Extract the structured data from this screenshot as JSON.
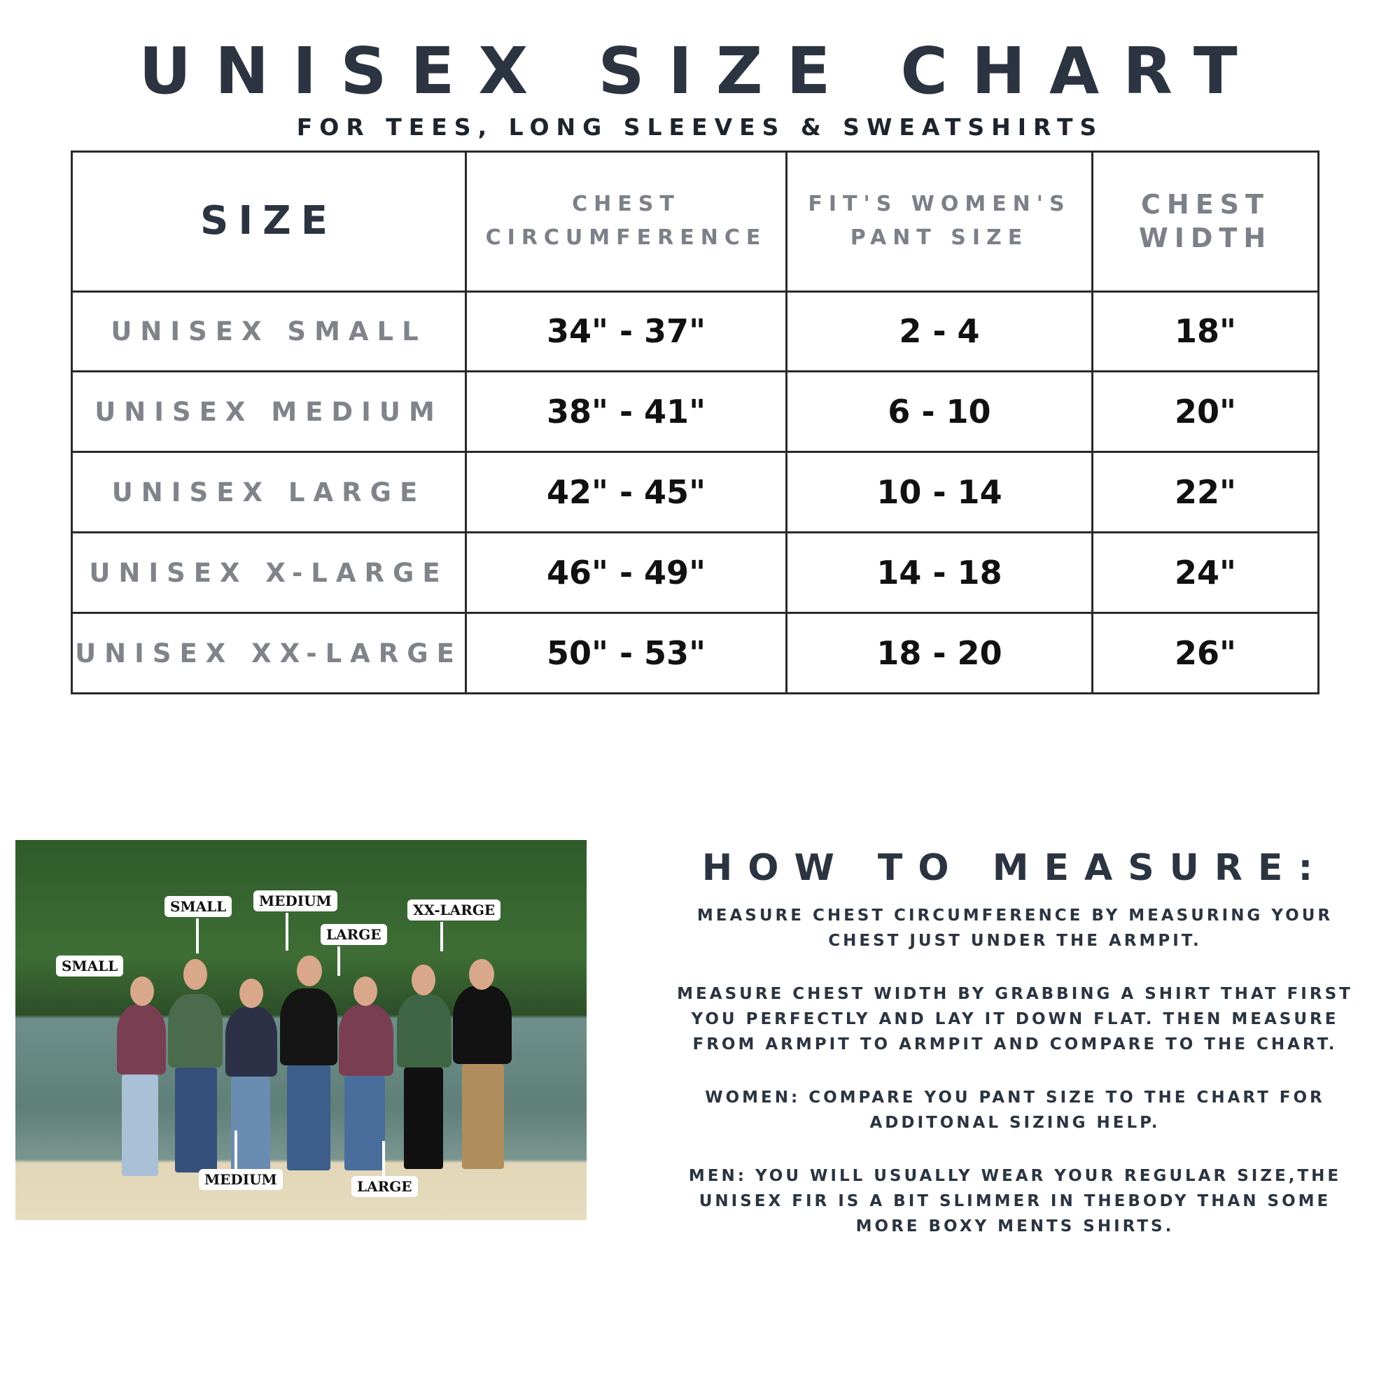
{
  "title": "UNISEX SIZE CHART",
  "subtitle": "FOR TEES, LONG SLEEVES & SWEATSHIRTS",
  "table": {
    "headers": [
      "SIZE",
      "CHEST CIRCUMFERENCE",
      "FIT'S WOMEN'S PANT SIZE",
      "CHEST WIDTH"
    ],
    "rows": [
      {
        "size": "UNISEX SMALL",
        "chest": "34\" - 37\"",
        "pant": "2 - 4",
        "width": "18\""
      },
      {
        "size": "UNISEX MEDIUM",
        "chest": "38\" - 41\"",
        "pant": "6 - 10",
        "width": "20\""
      },
      {
        "size": "UNISEX LARGE",
        "chest": "42\" - 45\"",
        "pant": "10 - 14",
        "width": "22\""
      },
      {
        "size": "UNISEX X-LARGE",
        "chest": "46\" - 49\"",
        "pant": "14 - 18",
        "width": "24\""
      },
      {
        "size": "UNISEX XX-LARGE",
        "chest": "50\" - 53\"",
        "pant": "18 - 20",
        "width": "26\""
      }
    ]
  },
  "photo": {
    "labels": [
      "SMALL",
      "SMALL",
      "MEDIUM",
      "LARGE",
      "XX-LARGE",
      "MEDIUM",
      "LARGE"
    ]
  },
  "howto": {
    "title": "HOW TO MEASURE:",
    "paragraphs": [
      [
        "MEASURE CHEST CIRCUMFERENCE BY MEASURING YOUR",
        "CHEST JUST UNDER THE ARMPIT."
      ],
      [
        "MEASURE CHEST WIDTH BY GRABBING A SHIRT THAT FIRST",
        "YOU PERFECTLY AND LAY IT DOWN FLAT. THEN MEASURE",
        "FROM ARMPIT TO ARMPIT AND COMPARE TO THE CHART."
      ],
      [
        "WOMEN: COMPARE YOU PANT SIZE TO THE CHART FOR",
        "ADDITONAL SIZING HELP."
      ],
      [
        "MEN: YOU WILL USUALLY WEAR YOUR REGULAR SIZE,THE",
        "UNISEX FIR IS A BIT SLIMMER IN THEBODY THAN SOME",
        "MORE BOXY MENTS SHIRTS."
      ]
    ]
  }
}
